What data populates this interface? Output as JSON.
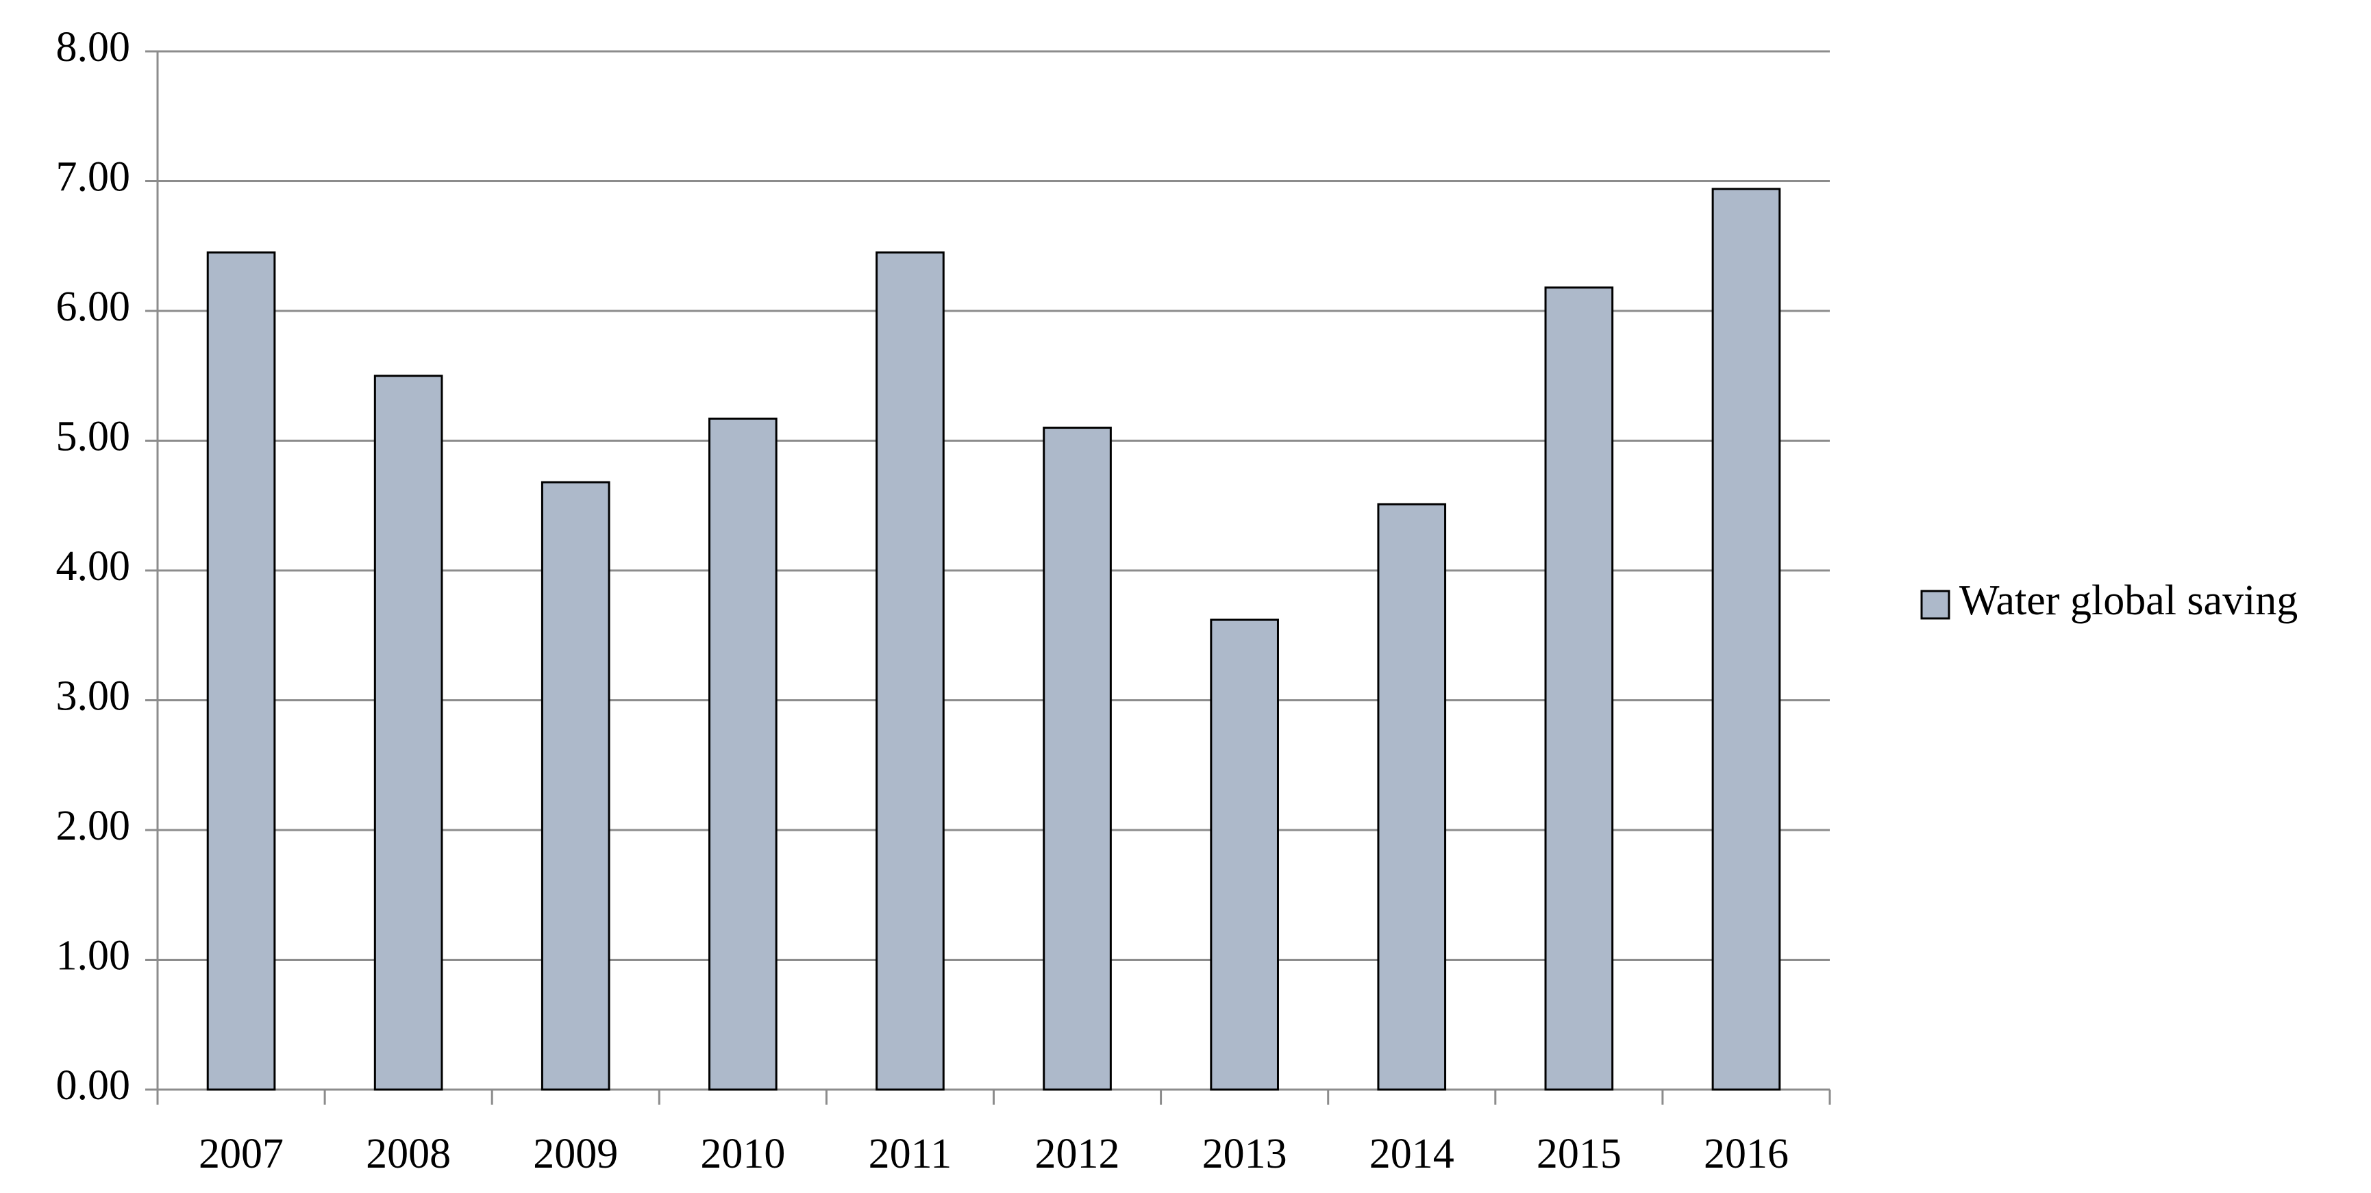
{
  "chart_data": {
    "type": "bar",
    "categories": [
      "2007",
      "2008",
      "2009",
      "2010",
      "2011",
      "2012",
      "2013",
      "2014",
      "2015",
      "2016"
    ],
    "series": [
      {
        "name": "Water global saving",
        "color": "#adb9ca",
        "values": [
          6.45,
          5.5,
          4.68,
          5.17,
          6.45,
          5.1,
          3.62,
          4.51,
          6.18,
          6.94
        ]
      }
    ],
    "ylim": [
      0,
      8
    ],
    "yticks": [
      {
        "value": 0,
        "label": "0.00"
      },
      {
        "value": 1,
        "label": "1.00"
      },
      {
        "value": 2,
        "label": "2.00"
      },
      {
        "value": 3,
        "label": "3.00"
      },
      {
        "value": 4,
        "label": "4.00"
      },
      {
        "value": 5,
        "label": "5.00"
      },
      {
        "value": 6,
        "label": "6.00"
      },
      {
        "value": 7,
        "label": "7.00"
      },
      {
        "value": 8,
        "label": "8.00"
      }
    ],
    "grid": true,
    "legend": "right"
  }
}
